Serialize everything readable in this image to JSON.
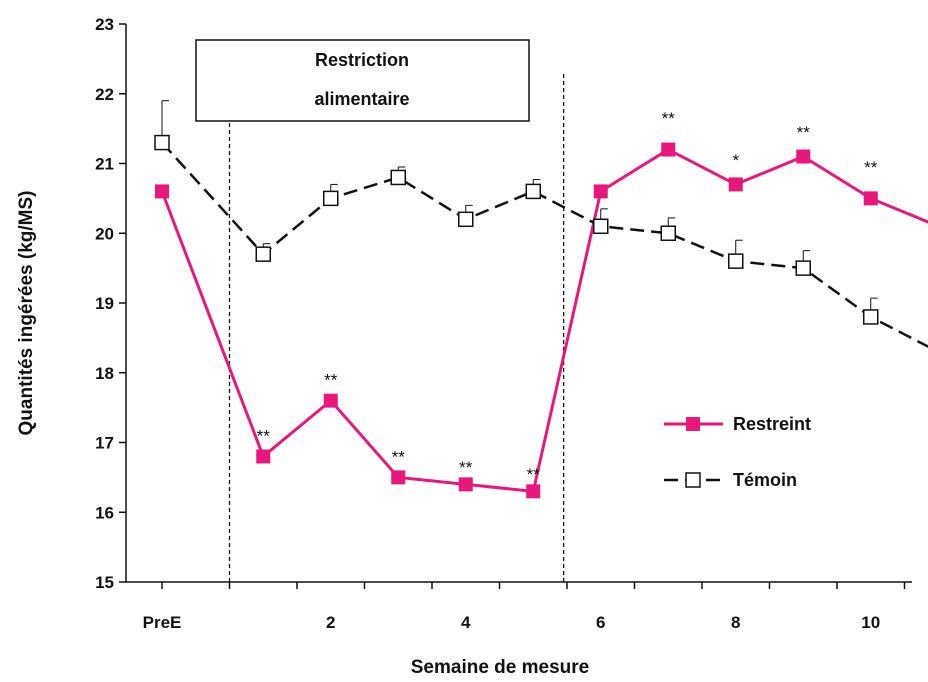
{
  "chart_data": {
    "type": "line",
    "xlabel": "Semaine de mesure",
    "ylabel": "Quantités ingérées (kg/MS)",
    "ylim": [
      15,
      23
    ],
    "yticks": [
      15,
      16,
      17,
      18,
      19,
      20,
      21,
      22,
      23
    ],
    "xlim": [
      -1,
      11.5
    ],
    "xtick_labels": [
      {
        "x": -0.5,
        "label": "PreE"
      },
      {
        "x": 2,
        "label": "2"
      },
      {
        "x": 4,
        "label": "4"
      },
      {
        "x": 6,
        "label": "6"
      },
      {
        "x": 8,
        "label": "8"
      },
      {
        "x": 10,
        "label": "10"
      }
    ],
    "x": [
      -0.5,
      1,
      2,
      3,
      4,
      5,
      6,
      7,
      8,
      9,
      10,
      11
    ],
    "series": [
      {
        "name": "Restreint",
        "color": "#e8177c",
        "marker": "filled-square",
        "line_style": "solid",
        "values": [
          20.6,
          16.8,
          17.6,
          16.5,
          16.4,
          16.3,
          20.6,
          21.2,
          20.7,
          21.1,
          20.5,
          20.1
        ]
      },
      {
        "name": "Témoin",
        "color": "#111111",
        "marker": "open-square",
        "line_style": "dashed",
        "values": [
          21.3,
          19.7,
          20.5,
          20.8,
          20.2,
          20.6,
          20.1,
          20.0,
          19.6,
          19.5,
          18.8,
          18.3
        ],
        "error_upper": [
          21.9,
          19.85,
          20.7,
          20.95,
          20.4,
          20.77,
          20.35,
          20.22,
          19.9,
          19.75,
          19.07,
          18.73
        ]
      }
    ],
    "annotations": [
      {
        "x": 1,
        "y": 17.1,
        "text": "**"
      },
      {
        "x": 2,
        "y": 17.9,
        "text": "**"
      },
      {
        "x": 3,
        "y": 16.8,
        "text": "**"
      },
      {
        "x": 4,
        "y": 16.65,
        "text": "**"
      },
      {
        "x": 5,
        "y": 16.55,
        "text": "**"
      },
      {
        "x": 7,
        "y": 21.65,
        "text": "**"
      },
      {
        "x": 8,
        "y": 21.05,
        "text": "*"
      },
      {
        "x": 9,
        "y": 21.45,
        "text": "**"
      },
      {
        "x": 10,
        "y": 20.95,
        "text": "**"
      },
      {
        "x": 11,
        "y": 20.5,
        "text": "**"
      }
    ],
    "restriction_period": {
      "x_start": 0.5,
      "x_end": 5.45,
      "label_line1": "Restriction",
      "label_line2": "alimentaire"
    },
    "legend": {
      "position": "right-middle"
    },
    "grid": false
  }
}
